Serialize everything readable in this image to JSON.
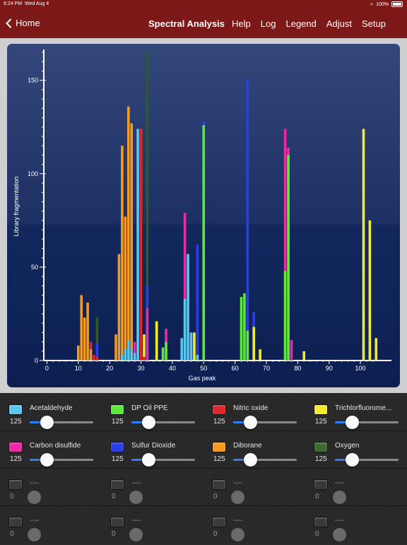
{
  "status": {
    "time": "6:24 PM",
    "date": "Wed Aug 4",
    "battery": "100%"
  },
  "nav": {
    "back_label": "Home",
    "title": "Spectral Analysis",
    "menu": [
      "Help",
      "Log",
      "Legend",
      "Adjust",
      "Setup"
    ]
  },
  "chart_data": {
    "type": "bar",
    "title": "",
    "xlabel": "Gas peak",
    "ylabel": "Library fragmentation",
    "xlim": [
      -1,
      109
    ],
    "ylim": [
      0,
      165
    ],
    "xticks": [
      0,
      10,
      20,
      30,
      40,
      50,
      60,
      70,
      80,
      90,
      100
    ],
    "yticks": [
      0,
      50,
      100,
      150
    ],
    "series": [
      {
        "name": "Acetaldehyde",
        "color": "#5ac8ee",
        "points": [
          [
            24,
            3
          ],
          [
            25,
            6
          ],
          [
            26,
            11
          ],
          [
            27,
            6
          ],
          [
            28,
            4
          ],
          [
            29,
            124
          ],
          [
            43,
            12
          ],
          [
            44,
            33
          ],
          [
            45,
            57
          ],
          [
            46,
            15
          ],
          [
            48,
            3
          ]
        ]
      },
      {
        "name": "DP Oil PPE",
        "color": "#5ee83b",
        "points": [
          [
            37,
            7
          ],
          [
            38,
            10
          ],
          [
            50,
            126
          ],
          [
            62,
            34
          ],
          [
            63,
            36
          ],
          [
            64,
            16
          ],
          [
            76,
            48
          ],
          [
            77,
            110
          ]
        ]
      },
      {
        "name": "Nitric oxide",
        "color": "#e02828",
        "points": [
          [
            14,
            10
          ],
          [
            15,
            3
          ],
          [
            16,
            2
          ],
          [
            30,
            124
          ],
          [
            31,
            2
          ]
        ]
      },
      {
        "name": "Trichlorfluoromethane",
        "color": "#f3ea2e",
        "points": [
          [
            31,
            14
          ],
          [
            35,
            21
          ],
          [
            47,
            15
          ],
          [
            66,
            18
          ],
          [
            68,
            6
          ],
          [
            82,
            5
          ],
          [
            101,
            124
          ],
          [
            103,
            75
          ],
          [
            105,
            12
          ]
        ]
      },
      {
        "name": "Carbon disulfide",
        "color": "#ec2aa6",
        "points": [
          [
            28,
            10
          ],
          [
            32,
            28
          ],
          [
            38,
            17
          ],
          [
            44,
            79
          ],
          [
            76,
            124
          ],
          [
            77,
            114
          ],
          [
            78,
            11
          ]
        ]
      },
      {
        "name": "Sulfur Dioxide",
        "color": "#2b3ee6",
        "points": [
          [
            16,
            9
          ],
          [
            32,
            40
          ],
          [
            48,
            62
          ],
          [
            50,
            128
          ],
          [
            64,
            151
          ],
          [
            66,
            26
          ]
        ]
      },
      {
        "name": "Diborane",
        "color": "#f59a20",
        "points": [
          [
            10,
            8
          ],
          [
            11,
            35
          ],
          [
            12,
            23
          ],
          [
            13,
            31
          ],
          [
            14,
            6
          ],
          [
            22,
            14
          ],
          [
            23,
            57
          ],
          [
            24,
            115
          ],
          [
            25,
            77
          ],
          [
            26,
            136
          ],
          [
            27,
            127
          ]
        ]
      },
      {
        "name": "Oxygen",
        "color": "#2f5a24",
        "points": [
          [
            16,
            23
          ],
          [
            32,
            168
          ]
        ]
      }
    ]
  },
  "controls": [
    {
      "name": "Acetaldehyde",
      "value": "125",
      "color": "#5ac8ee",
      "level": 0.2
    },
    {
      "name": "DP Oil PPE",
      "value": "125",
      "color": "#5ee83b",
      "level": 0.2
    },
    {
      "name": "Nitric oxide",
      "value": "125",
      "color": "#e02828",
      "level": 0.2
    },
    {
      "name": "Trichlorfluorome...",
      "value": "125",
      "color": "#f3ea2e",
      "level": 0.2
    },
    {
      "name": "Carbon disulfide",
      "value": "125",
      "color": "#ec2aa6",
      "level": 0.2
    },
    {
      "name": "Sulfur Dioxide",
      "value": "125",
      "color": "#2b3ee6",
      "level": 0.2
    },
    {
      "name": "Diborane",
      "value": "125",
      "color": "#f59a20",
      "level": 0.2
    },
    {
      "name": "Oxygen",
      "value": "125",
      "color": "#3f6a34",
      "level": 0.2
    },
    {
      "name": "----",
      "value": "0",
      "color": "#3a3a3a",
      "level": 0
    },
    {
      "name": "----",
      "value": "0",
      "color": "#3a3a3a",
      "level": 0
    },
    {
      "name": "----",
      "value": "0",
      "color": "#3a3a3a",
      "level": 0
    },
    {
      "name": "----",
      "value": "0",
      "color": "#3a3a3a",
      "level": 0
    },
    {
      "name": "----",
      "value": "0",
      "color": "#3a3a3a",
      "level": 0
    },
    {
      "name": "----",
      "value": "0",
      "color": "#3a3a3a",
      "level": 0
    },
    {
      "name": "----",
      "value": "0",
      "color": "#3a3a3a",
      "level": 0
    },
    {
      "name": "----",
      "value": "0",
      "color": "#3a3a3a",
      "level": 0
    }
  ]
}
